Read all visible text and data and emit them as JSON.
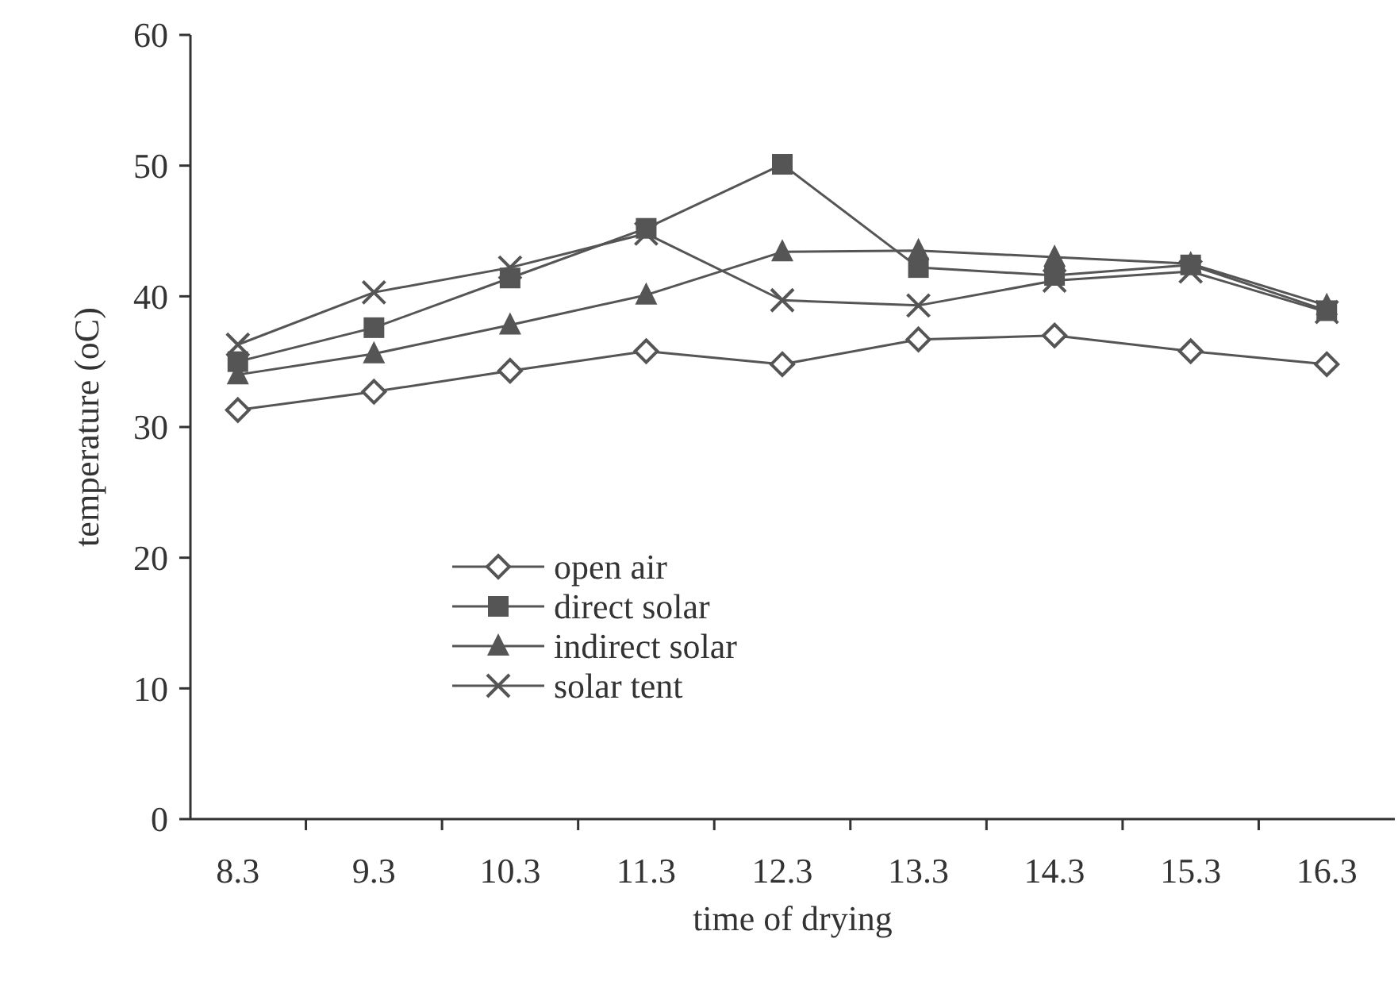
{
  "chart_data": {
    "type": "line",
    "xlabel": "time of drying",
    "ylabel": "temperature (oC)",
    "categories": [
      "8.3",
      "9.3",
      "10.3",
      "11.3",
      "12.3",
      "13.3",
      "14.3",
      "15.3",
      "16.3"
    ],
    "ylim": [
      0,
      60
    ],
    "yticks": [
      0,
      10,
      20,
      30,
      40,
      50,
      60
    ],
    "grid": false,
    "legend": "bottom left",
    "line_style": "solid",
    "series": [
      {
        "name": "open air",
        "color": "#555555",
        "marker": "diamond",
        "values": [
          31.3,
          32.7,
          34.3,
          35.8,
          34.8,
          36.7,
          37.0,
          35.8,
          34.8
        ]
      },
      {
        "name": "direct solar",
        "color": "#555555",
        "marker": "square",
        "values": [
          35.0,
          37.6,
          41.4,
          45.2,
          50.1,
          42.2,
          41.6,
          42.4,
          38.9
        ]
      },
      {
        "name": "indirect solar",
        "color": "#555555",
        "marker": "triangle",
        "values": [
          34.0,
          35.6,
          37.8,
          40.1,
          43.4,
          43.5,
          43.0,
          42.5,
          39.3
        ]
      },
      {
        "name": "solar tent",
        "color": "#555555",
        "marker": "cross",
        "values": [
          36.3,
          40.3,
          42.2,
          44.8,
          39.7,
          39.3,
          41.2,
          41.9,
          38.8
        ]
      }
    ]
  }
}
